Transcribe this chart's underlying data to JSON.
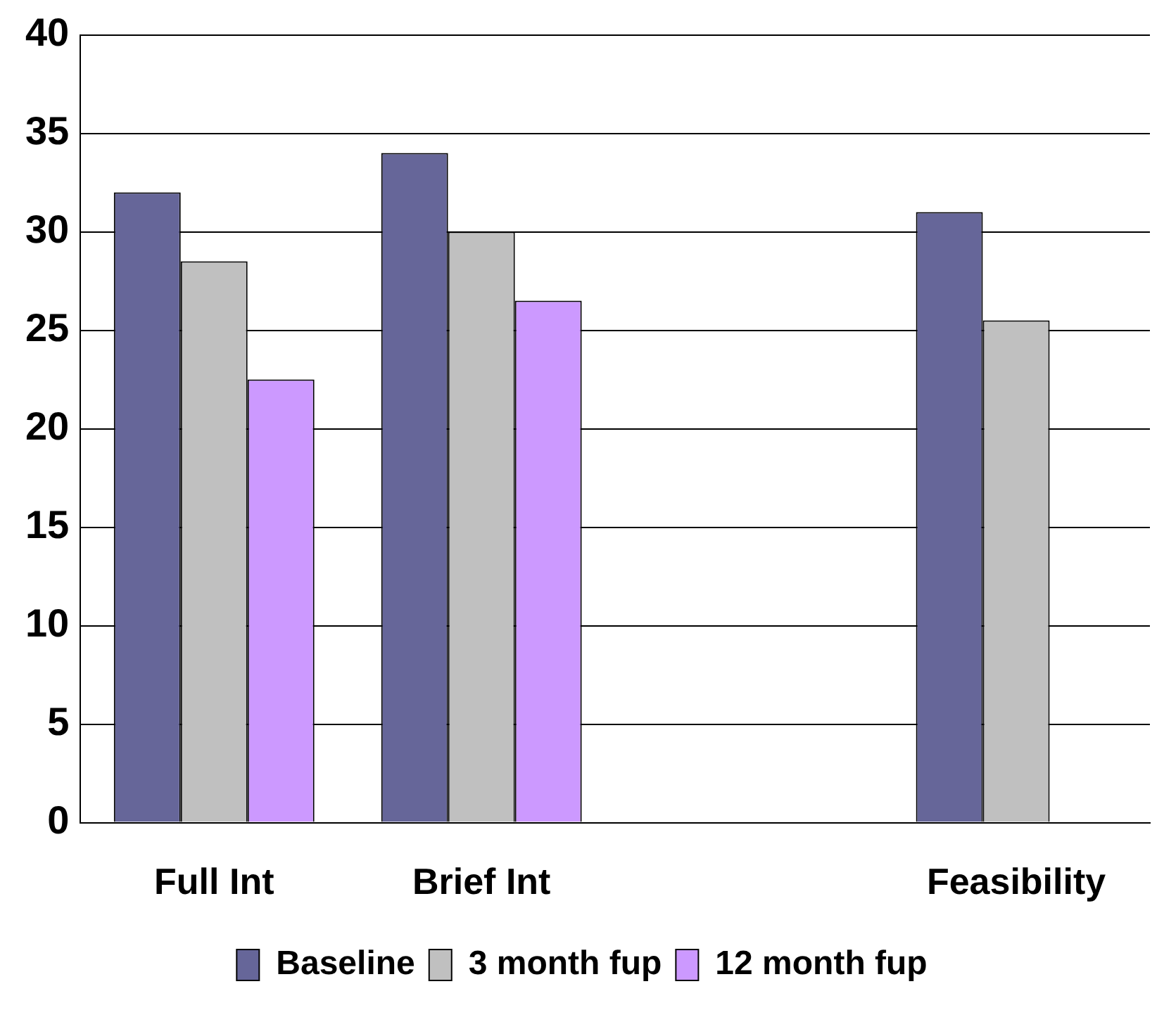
{
  "chart_data": {
    "type": "bar",
    "categories": [
      "Full Int",
      "Brief Int",
      null,
      "Feasibility"
    ],
    "series": [
      {
        "name": "Baseline",
        "color": "#666699",
        "values": [
          32,
          34,
          null,
          31
        ]
      },
      {
        "name": "3 month fup",
        "color": "#c0c0c0",
        "values": [
          28.5,
          30,
          null,
          25.5
        ]
      },
      {
        "name": "12 month fup",
        "color": "#cc99ff",
        "values": [
          22.5,
          26.5,
          null,
          null
        ]
      }
    ],
    "ylim": [
      0,
      40
    ],
    "yticks": [
      0,
      5,
      10,
      15,
      20,
      25,
      30,
      35,
      40
    ],
    "grid": "y",
    "legend": "bottom"
  }
}
